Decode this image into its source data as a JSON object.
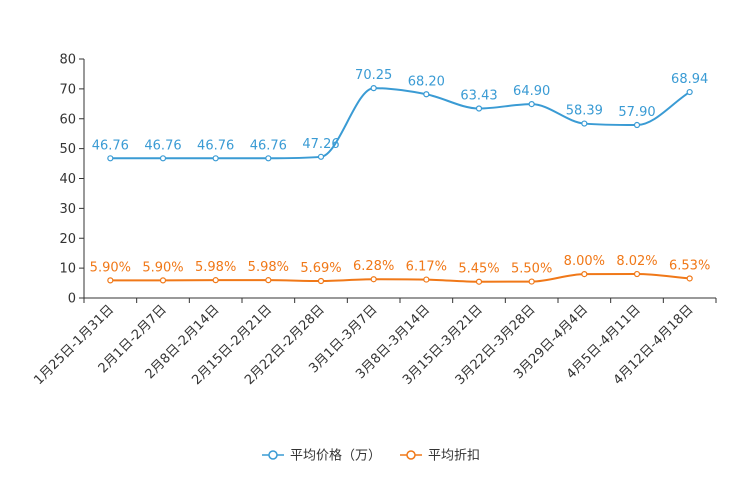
{
  "chart_data": {
    "type": "line",
    "categories": [
      "1月25日-1月31日",
      "2月1日-2月7日",
      "2月8日-2月14日",
      "2月15日-2月21日",
      "2月22日-2月28日",
      "3月1日-3月7日",
      "3月8日-3月14日",
      "3月15日-3月21日",
      "3月22日-3月28日",
      "3月29日-4月4日",
      "4月5日-4月11日",
      "4月12日-4月18日"
    ],
    "series": [
      {
        "name": "平均价格（万）",
        "color": "#3a9bd4",
        "values": [
          46.76,
          46.76,
          46.76,
          46.76,
          47.26,
          70.25,
          68.2,
          63.43,
          64.9,
          58.39,
          57.9,
          68.94
        ],
        "labels": [
          "46.76",
          "46.76",
          "46.76",
          "46.76",
          "47.26",
          "70.25",
          "68.20",
          "63.43",
          "64.90",
          "58.39",
          "57.90",
          "68.94"
        ]
      },
      {
        "name": "平均折扣",
        "color": "#f07818",
        "values": [
          5.9,
          5.9,
          5.98,
          5.98,
          5.69,
          6.28,
          6.17,
          5.45,
          5.5,
          8.0,
          8.02,
          6.53
        ],
        "labels": [
          "5.90%",
          "5.90%",
          "5.98%",
          "5.98%",
          "5.69%",
          "6.28%",
          "6.17%",
          "5.45%",
          "5.50%",
          "8.00%",
          "8.02%",
          "6.53%"
        ]
      }
    ],
    "yticks": [
      "0",
      "10",
      "20",
      "30",
      "40",
      "50",
      "60",
      "70",
      "80"
    ],
    "ylim": [
      0,
      80
    ],
    "legend_position": "bottom-center",
    "title": "",
    "xlabel": "",
    "ylabel": ""
  }
}
